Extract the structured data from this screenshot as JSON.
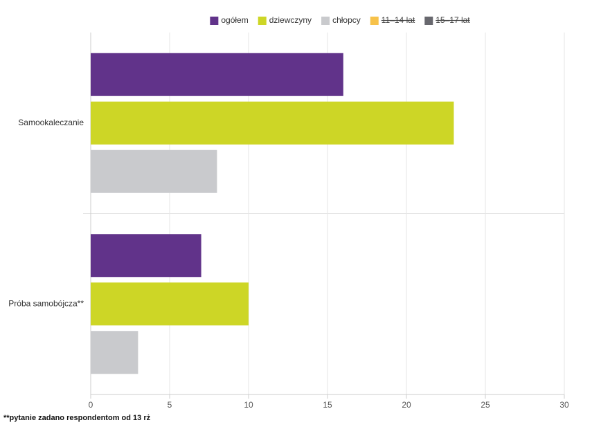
{
  "chart_data": {
    "type": "hbar",
    "categories": [
      "Samookaleczanie",
      "Próba samobójcza**"
    ],
    "series": [
      {
        "name": "ogółem",
        "color": "#61338a",
        "values": [
          16,
          7
        ]
      },
      {
        "name": "dziewczyny",
        "color": "#cdd626",
        "values": [
          23,
          10
        ]
      },
      {
        "name": "chłopcy",
        "color": "#c9cacd",
        "values": [
          8,
          3
        ]
      },
      {
        "name": "11–14 lat",
        "color": "#f7c24a",
        "values": [
          null,
          null
        ],
        "hidden": true
      },
      {
        "name": "15–17 lat",
        "color": "#68686e",
        "values": [
          null,
          null
        ],
        "hidden": true
      }
    ],
    "xlim": [
      0,
      30
    ],
    "xticks": [
      0,
      5,
      10,
      15,
      20,
      25,
      30
    ],
    "grid": true,
    "legend": "top",
    "footnote": "**pytanie zadano respondentom od 13 rż"
  }
}
